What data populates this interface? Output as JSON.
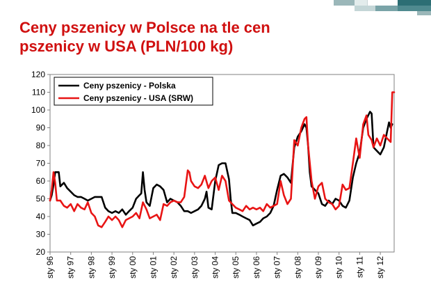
{
  "slide": {
    "title_line1": "Ceny pszenicy w Polsce na tle cen",
    "title_line2": "pszenicy w USA (PLN/100 kg)"
  },
  "colors": {
    "title": "#d01010",
    "series_pl": "#000000",
    "series_usa": "#e81414",
    "accent_teal": "#2c6e74"
  },
  "chart_data": {
    "type": "line",
    "title": "",
    "xlabel": "",
    "ylabel": "",
    "ylim": [
      20,
      120
    ],
    "yticks": [
      20,
      30,
      40,
      50,
      60,
      70,
      80,
      90,
      100,
      110,
      120
    ],
    "xlim": [
      1996.0,
      2012.67
    ],
    "xticks": [
      "sty 96",
      "sty 97",
      "sty 98",
      "sty 99",
      "sty 00",
      "sty 01",
      "sty 02",
      "sty 03",
      "sty 04",
      "sty 05",
      "sty 06",
      "sty 07",
      "sty 08",
      "sty 09",
      "sty 10",
      "sty 11",
      "sty 12"
    ],
    "grid": false,
    "legend_position": "top-left",
    "series": [
      {
        "name": "Ceny pszenicy - Polska",
        "color": "#000000",
        "points": [
          [
            1996.0,
            49
          ],
          [
            1996.08,
            52
          ],
          [
            1996.17,
            58
          ],
          [
            1996.25,
            65
          ],
          [
            1996.42,
            65
          ],
          [
            1996.5,
            57
          ],
          [
            1996.67,
            59
          ],
          [
            1996.83,
            56
          ],
          [
            1997.0,
            54
          ],
          [
            1997.17,
            52
          ],
          [
            1997.33,
            51
          ],
          [
            1997.5,
            51
          ],
          [
            1997.67,
            50
          ],
          [
            1997.83,
            49
          ],
          [
            1998.0,
            50
          ],
          [
            1998.17,
            51
          ],
          [
            1998.33,
            51
          ],
          [
            1998.5,
            51
          ],
          [
            1998.67,
            45
          ],
          [
            1998.83,
            43
          ],
          [
            1999.0,
            42
          ],
          [
            1999.17,
            43
          ],
          [
            1999.33,
            42
          ],
          [
            1999.5,
            44
          ],
          [
            1999.67,
            41
          ],
          [
            1999.83,
            43
          ],
          [
            2000.0,
            45
          ],
          [
            2000.17,
            50
          ],
          [
            2000.33,
            52
          ],
          [
            2000.42,
            53
          ],
          [
            2000.5,
            65
          ],
          [
            2000.58,
            55
          ],
          [
            2000.67,
            48
          ],
          [
            2000.83,
            46
          ],
          [
            2001.0,
            56
          ],
          [
            2001.17,
            58
          ],
          [
            2001.33,
            57
          ],
          [
            2001.5,
            55
          ],
          [
            2001.67,
            48
          ],
          [
            2001.83,
            50
          ],
          [
            2002.0,
            49
          ],
          [
            2002.17,
            48
          ],
          [
            2002.33,
            46
          ],
          [
            2002.5,
            43
          ],
          [
            2002.67,
            43
          ],
          [
            2002.83,
            42
          ],
          [
            2003.0,
            43
          ],
          [
            2003.17,
            44
          ],
          [
            2003.33,
            46
          ],
          [
            2003.5,
            50
          ],
          [
            2003.58,
            54
          ],
          [
            2003.67,
            45
          ],
          [
            2003.83,
            44
          ],
          [
            2004.0,
            60
          ],
          [
            2004.17,
            69
          ],
          [
            2004.33,
            70
          ],
          [
            2004.5,
            70
          ],
          [
            2004.67,
            61
          ],
          [
            2004.75,
            50
          ],
          [
            2004.83,
            42
          ],
          [
            2005.0,
            42
          ],
          [
            2005.17,
            41
          ],
          [
            2005.33,
            40
          ],
          [
            2005.5,
            39
          ],
          [
            2005.67,
            38
          ],
          [
            2005.83,
            35
          ],
          [
            2006.0,
            36
          ],
          [
            2006.17,
            37
          ],
          [
            2006.33,
            39
          ],
          [
            2006.5,
            40
          ],
          [
            2006.67,
            42
          ],
          [
            2006.83,
            46
          ],
          [
            2007.0,
            55
          ],
          [
            2007.17,
            63
          ],
          [
            2007.33,
            64
          ],
          [
            2007.5,
            62
          ],
          [
            2007.67,
            59
          ],
          [
            2007.83,
            79
          ],
          [
            2008.0,
            85
          ],
          [
            2008.17,
            88
          ],
          [
            2008.33,
            92
          ],
          [
            2008.42,
            90
          ],
          [
            2008.5,
            80
          ],
          [
            2008.58,
            65
          ],
          [
            2008.67,
            57
          ],
          [
            2008.83,
            55
          ],
          [
            2009.0,
            53
          ],
          [
            2009.17,
            47
          ],
          [
            2009.33,
            46
          ],
          [
            2009.5,
            49
          ],
          [
            2009.67,
            47
          ],
          [
            2009.83,
            50
          ],
          [
            2010.0,
            49
          ],
          [
            2010.17,
            46
          ],
          [
            2010.33,
            45
          ],
          [
            2010.5,
            49
          ],
          [
            2010.67,
            62
          ],
          [
            2010.83,
            70
          ],
          [
            2011.0,
            76
          ],
          [
            2011.17,
            90
          ],
          [
            2011.33,
            95
          ],
          [
            2011.5,
            99
          ],
          [
            2011.58,
            98
          ],
          [
            2011.67,
            79
          ],
          [
            2011.83,
            77
          ],
          [
            2012.0,
            75
          ],
          [
            2012.17,
            79
          ],
          [
            2012.33,
            88
          ],
          [
            2012.42,
            93
          ],
          [
            2012.5,
            90
          ],
          [
            2012.58,
            92
          ]
        ]
      },
      {
        "name": "Ceny pszenicy - USA (SRW)",
        "color": "#e81414",
        "points": [
          [
            1996.0,
            49
          ],
          [
            1996.08,
            55
          ],
          [
            1996.17,
            65
          ],
          [
            1996.25,
            59
          ],
          [
            1996.33,
            49
          ],
          [
            1996.5,
            49
          ],
          [
            1996.67,
            46
          ],
          [
            1996.83,
            45
          ],
          [
            1997.0,
            47
          ],
          [
            1997.17,
            43
          ],
          [
            1997.33,
            47
          ],
          [
            1997.5,
            45
          ],
          [
            1997.67,
            44
          ],
          [
            1997.83,
            48
          ],
          [
            1998.0,
            42
          ],
          [
            1998.17,
            40
          ],
          [
            1998.33,
            35
          ],
          [
            1998.5,
            34
          ],
          [
            1998.67,
            37
          ],
          [
            1998.83,
            40
          ],
          [
            1999.0,
            38
          ],
          [
            1999.17,
            40
          ],
          [
            1999.33,
            38
          ],
          [
            1999.5,
            34
          ],
          [
            1999.67,
            38
          ],
          [
            1999.83,
            39
          ],
          [
            2000.0,
            40
          ],
          [
            2000.17,
            42
          ],
          [
            2000.33,
            39
          ],
          [
            2000.5,
            48
          ],
          [
            2000.67,
            44
          ],
          [
            2000.83,
            39
          ],
          [
            2001.0,
            40
          ],
          [
            2001.17,
            41
          ],
          [
            2001.33,
            38
          ],
          [
            2001.5,
            47
          ],
          [
            2001.67,
            46
          ],
          [
            2001.83,
            48
          ],
          [
            2002.0,
            49
          ],
          [
            2002.17,
            48
          ],
          [
            2002.33,
            48
          ],
          [
            2002.5,
            51
          ],
          [
            2002.67,
            66
          ],
          [
            2002.75,
            65
          ],
          [
            2002.83,
            60
          ],
          [
            2003.0,
            57
          ],
          [
            2003.17,
            56
          ],
          [
            2003.33,
            58
          ],
          [
            2003.5,
            63
          ],
          [
            2003.67,
            56
          ],
          [
            2003.83,
            60
          ],
          [
            2004.0,
            62
          ],
          [
            2004.17,
            55
          ],
          [
            2004.33,
            63
          ],
          [
            2004.5,
            60
          ],
          [
            2004.67,
            49
          ],
          [
            2004.83,
            47
          ],
          [
            2005.0,
            45
          ],
          [
            2005.17,
            44
          ],
          [
            2005.33,
            43
          ],
          [
            2005.5,
            46
          ],
          [
            2005.67,
            44
          ],
          [
            2005.83,
            45
          ],
          [
            2006.0,
            44
          ],
          [
            2006.17,
            45
          ],
          [
            2006.33,
            43
          ],
          [
            2006.5,
            47
          ],
          [
            2006.67,
            45
          ],
          [
            2006.83,
            46
          ],
          [
            2007.0,
            47
          ],
          [
            2007.17,
            60
          ],
          [
            2007.33,
            52
          ],
          [
            2007.5,
            47
          ],
          [
            2007.67,
            50
          ],
          [
            2007.83,
            83
          ],
          [
            2008.0,
            80
          ],
          [
            2008.17,
            90
          ],
          [
            2008.33,
            95
          ],
          [
            2008.42,
            96
          ],
          [
            2008.5,
            80
          ],
          [
            2008.67,
            60
          ],
          [
            2008.83,
            50
          ],
          [
            2009.0,
            57
          ],
          [
            2009.17,
            59
          ],
          [
            2009.33,
            50
          ],
          [
            2009.5,
            48
          ],
          [
            2009.67,
            47
          ],
          [
            2009.83,
            44
          ],
          [
            2010.0,
            46
          ],
          [
            2010.17,
            58
          ],
          [
            2010.33,
            55
          ],
          [
            2010.5,
            56
          ],
          [
            2010.67,
            70
          ],
          [
            2010.83,
            84
          ],
          [
            2011.0,
            73
          ],
          [
            2011.17,
            92
          ],
          [
            2011.33,
            97
          ],
          [
            2011.42,
            86
          ],
          [
            2011.58,
            83
          ],
          [
            2011.67,
            79
          ],
          [
            2011.83,
            84
          ],
          [
            2012.0,
            80
          ],
          [
            2012.17,
            86
          ],
          [
            2012.33,
            84
          ],
          [
            2012.5,
            82
          ],
          [
            2012.58,
            110
          ],
          [
            2012.67,
            110
          ]
        ]
      }
    ]
  }
}
